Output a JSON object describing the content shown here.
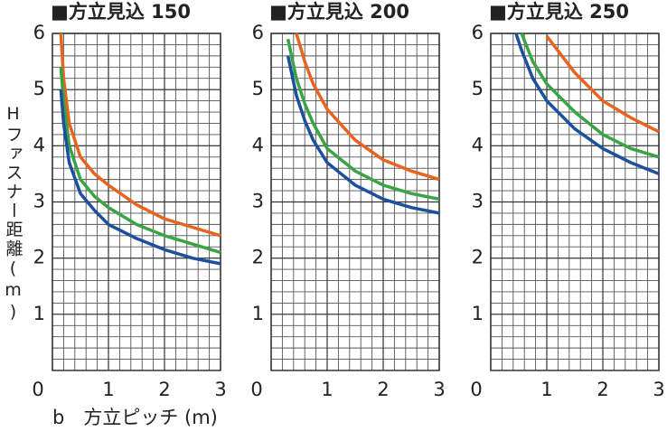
{
  "chart_data": [
    {
      "type": "line",
      "title": "■方立見込 150",
      "ylabel": "Hファスナー距離(m)",
      "xlabel": "b　方立ピッチ (m)",
      "x": [
        0.15,
        0.2,
        0.3,
        0.5,
        0.75,
        1,
        1.5,
        2,
        2.5,
        3
      ],
      "series": [
        {
          "color": "#e8641e",
          "values": [
            6,
            5.2,
            4.4,
            3.8,
            3.5,
            3.3,
            2.95,
            2.7,
            2.55,
            2.4
          ]
        },
        {
          "color": "#3aa444",
          "values": [
            5.4,
            4.8,
            4.0,
            3.4,
            3.1,
            2.9,
            2.6,
            2.4,
            2.25,
            2.1
          ]
        },
        {
          "color": "#1c4f9c",
          "values": [
            5.0,
            4.4,
            3.7,
            3.15,
            2.85,
            2.6,
            2.35,
            2.15,
            2.0,
            1.9
          ]
        }
      ],
      "xlim": [
        0,
        3
      ],
      "ylim": [
        0,
        6
      ],
      "xticks": [
        0,
        1,
        2,
        3
      ],
      "yticks": [
        1,
        2,
        3,
        4,
        5,
        6
      ],
      "grid": true,
      "grid_step": 0.2
    },
    {
      "type": "line",
      "title": "■方立見込 200",
      "x": [
        0.3,
        0.45,
        0.6,
        0.75,
        1,
        1.5,
        2,
        2.5,
        3
      ],
      "series": [
        {
          "color": "#e8641e",
          "values": [
            null,
            6,
            5.5,
            5.1,
            4.65,
            4.1,
            3.75,
            3.55,
            3.4
          ]
        },
        {
          "color": "#3aa444",
          "values": [
            5.9,
            5.2,
            4.75,
            4.4,
            3.95,
            3.55,
            3.3,
            3.15,
            3.05
          ]
        },
        {
          "color": "#1c4f9c",
          "values": [
            5.6,
            4.9,
            4.45,
            4.1,
            3.7,
            3.3,
            3.05,
            2.9,
            2.8
          ]
        }
      ],
      "xlim": [
        0,
        3
      ],
      "ylim": [
        0,
        6
      ],
      "xticks": [
        0,
        1,
        2,
        3
      ],
      "yticks": [
        1,
        2,
        3,
        4,
        5,
        6
      ],
      "grid": true,
      "grid_step": 0.2
    },
    {
      "type": "line",
      "title": "■方立見込 250",
      "x": [
        0.45,
        0.55,
        0.75,
        1,
        1.5,
        2,
        2.5,
        3
      ],
      "series": [
        {
          "color": "#e8641e",
          "values": [
            null,
            null,
            null,
            5.95,
            5.3,
            4.8,
            4.5,
            4.25
          ]
        },
        {
          "color": "#3aa444",
          "values": [
            null,
            6,
            5.5,
            5.1,
            4.6,
            4.2,
            3.95,
            3.8
          ]
        },
        {
          "color": "#1c4f9c",
          "values": [
            6,
            5.7,
            5.2,
            4.8,
            4.3,
            3.95,
            3.7,
            3.5
          ]
        }
      ],
      "xlim": [
        0,
        3
      ],
      "ylim": [
        0,
        6
      ],
      "xticks": [
        0,
        1,
        2,
        3
      ],
      "yticks": [
        1,
        2,
        3,
        4,
        5,
        6
      ],
      "grid": true,
      "grid_step": 0.2
    }
  ]
}
